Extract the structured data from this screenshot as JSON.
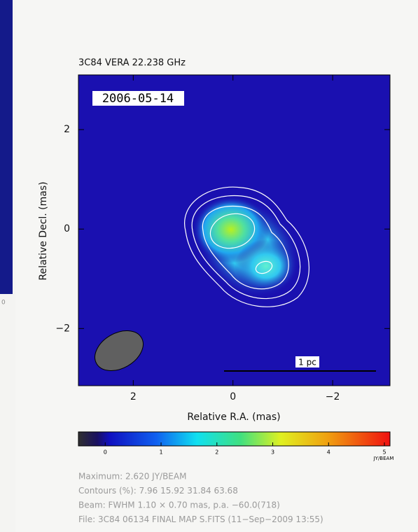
{
  "chart_data": {
    "type": "image",
    "title": "3C84 VERA 22.238 GHz",
    "date_label": "2006-05-14",
    "x_label": "Relative R.A. (mas)",
    "y_label": "Relative Decl. (mas)",
    "xlim": [
      3.1,
      -3.15
    ],
    "ylim": [
      -3.15,
      3.1
    ],
    "xticks": [
      2,
      0,
      {
        "value": -2,
        "label": "−2"
      }
    ],
    "yticks": [
      {
        "value": -2,
        "label": "−2"
      },
      0,
      2
    ],
    "scale_bar_label": "1 pc",
    "colorbar": {
      "label": "JY/BEAM",
      "lim": [
        -0.48,
        5.1
      ],
      "ticks": [
        0,
        1,
        2,
        3,
        4,
        5
      ]
    },
    "notes": [
      "Maximum: 2.620 JY/BEAM",
      "Contours (%): 7.96 15.92 31.84 63.68",
      "Beam: FWHM 1.10 × 0.70 mas, p.a. −60.0(718)",
      "File: 3C84 06134 FINAL MAP S.FITS  (11−Sep−2009 13:55)"
    ],
    "side_fragment_label": "0"
  }
}
